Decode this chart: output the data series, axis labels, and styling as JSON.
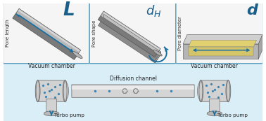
{
  "bg_color": "#ffffff",
  "panel_border_color": "#5a9fc0",
  "panel_bg": "#f8f8f8",
  "label_color": "#1a5f8a",
  "apparatus_bg": "#d8eef8",
  "blue_dot_color": "#3d85b0",
  "arrow_color": "#1a6fa0",
  "metal_mid": "#9a9a9a",
  "metal_light": "#d8d8d8",
  "metal_highlight": "#e8e8e8",
  "metal_dark": "#6a6a6a",
  "panels": [
    {
      "label": "L",
      "sublabel": "Pore length",
      "label_size": 20
    },
    {
      "label": "d",
      "sublabel": "Pore shape",
      "label_size": 16
    },
    {
      "label": "d",
      "sublabel": "Pore diameter",
      "label_size": 16
    }
  ],
  "apparatus_labels": {
    "left_chamber": "Vacuum chamber",
    "right_chamber": "Vacuum chamber",
    "channel": "Diffusion channel",
    "left_pump": "Turbo pump",
    "right_pump": "Turbo pump"
  }
}
